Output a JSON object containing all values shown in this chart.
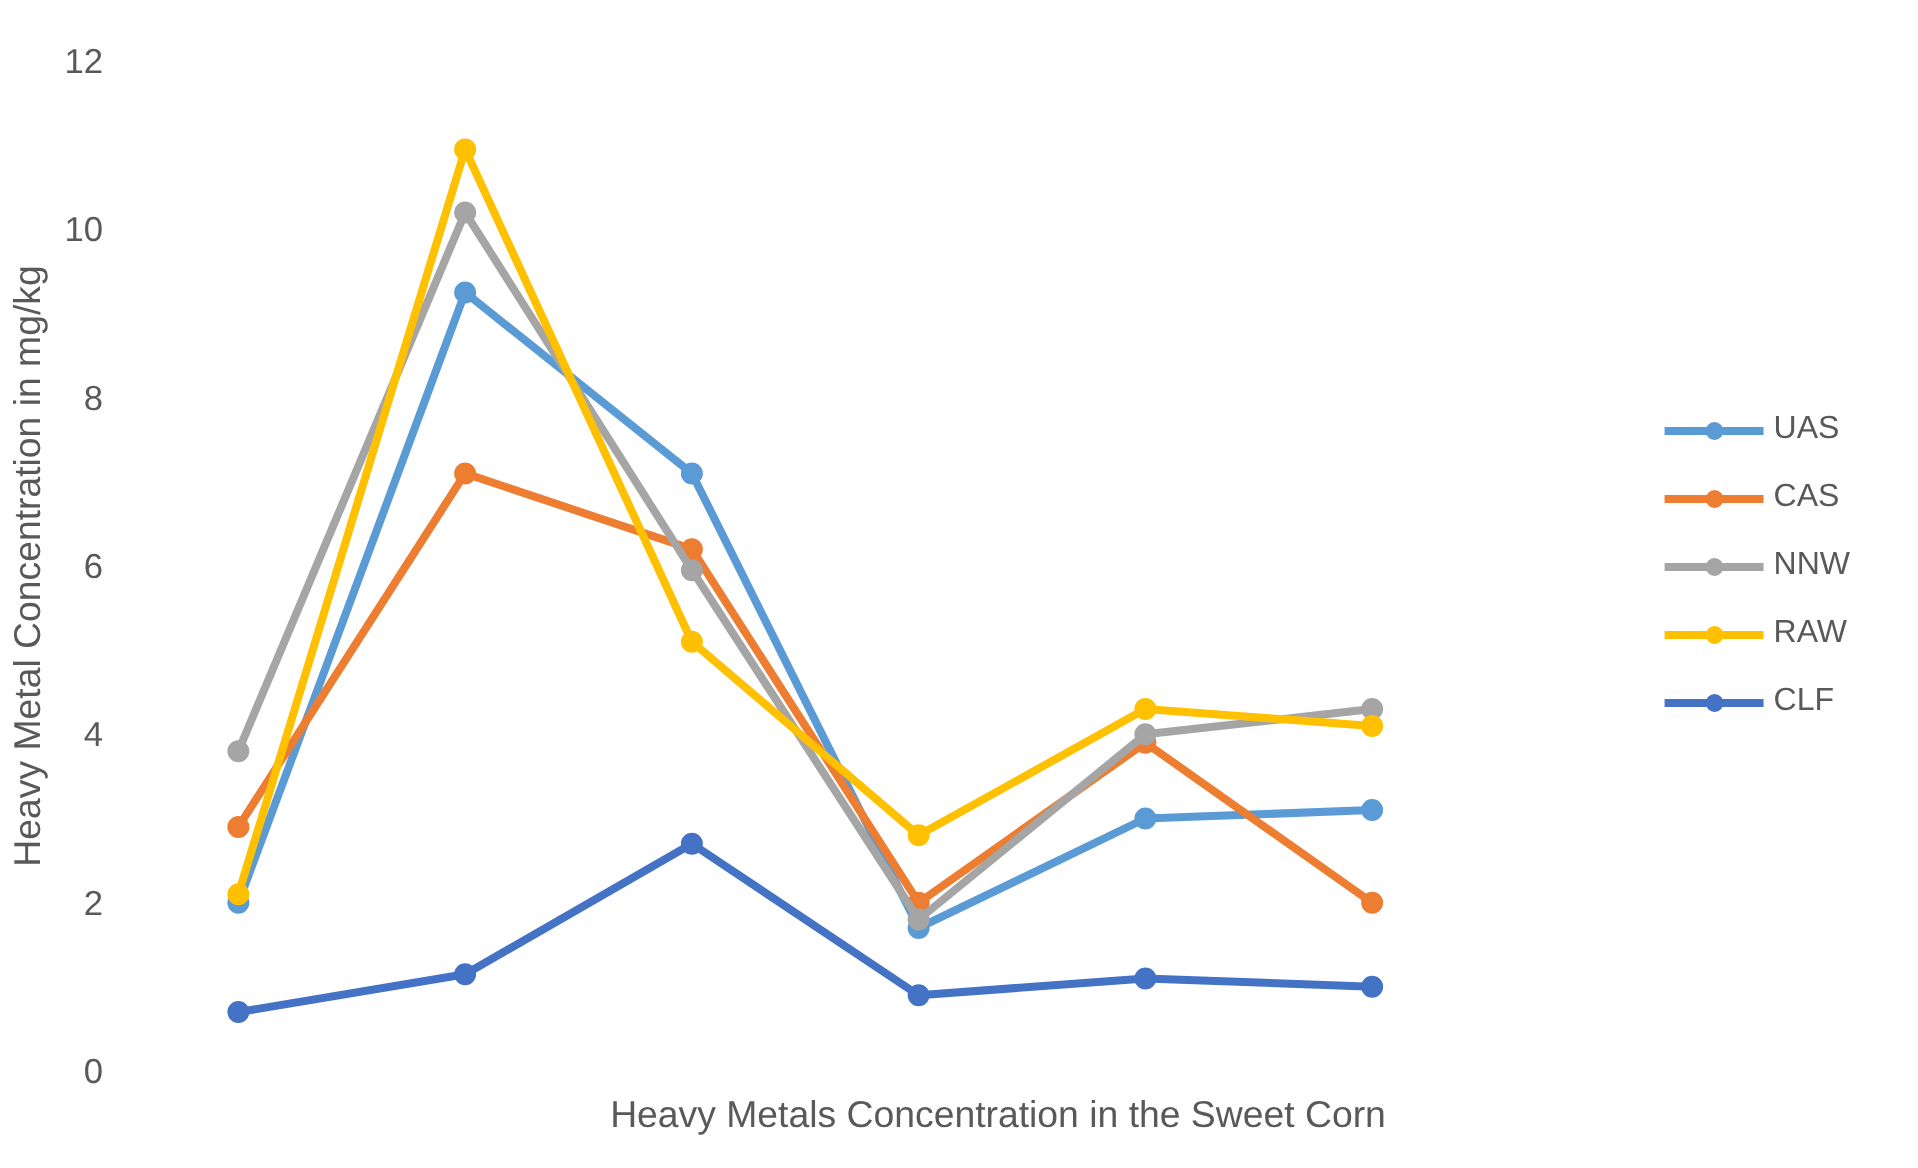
{
  "chart_data": {
    "type": "line",
    "xlabel": "Heavy Metals Concentration in the Sweet Corn",
    "ylabel": "Heavy Metal Concentration in mg/kg",
    "categories": [
      null,
      null,
      null,
      null,
      null,
      null
    ],
    "series": [
      {
        "name": "UAS",
        "color": "#5b9bd5",
        "values": [
          2.0,
          9.25,
          7.1,
          1.7,
          3.0,
          3.1
        ]
      },
      {
        "name": "CAS",
        "color": "#ed7d31",
        "values": [
          2.9,
          7.1,
          6.2,
          2.0,
          3.9,
          2.0
        ]
      },
      {
        "name": "NNW",
        "color": "#a5a5a5",
        "values": [
          3.8,
          10.2,
          5.95,
          1.8,
          4.0,
          4.3
        ]
      },
      {
        "name": "RAW",
        "color": "#ffc000",
        "values": [
          2.1,
          10.95,
          5.1,
          2.8,
          4.3,
          4.1
        ]
      },
      {
        "name": "CLF",
        "color": "#4472c4",
        "values": [
          0.7,
          1.15,
          2.7,
          0.9,
          1.1,
          1.0
        ]
      }
    ],
    "ylim": [
      0,
      12
    ],
    "yticks": [
      0,
      2,
      4,
      6,
      8,
      10,
      12
    ],
    "grid": false,
    "legend": "right",
    "marker": "circle",
    "line_style": "solid"
  }
}
